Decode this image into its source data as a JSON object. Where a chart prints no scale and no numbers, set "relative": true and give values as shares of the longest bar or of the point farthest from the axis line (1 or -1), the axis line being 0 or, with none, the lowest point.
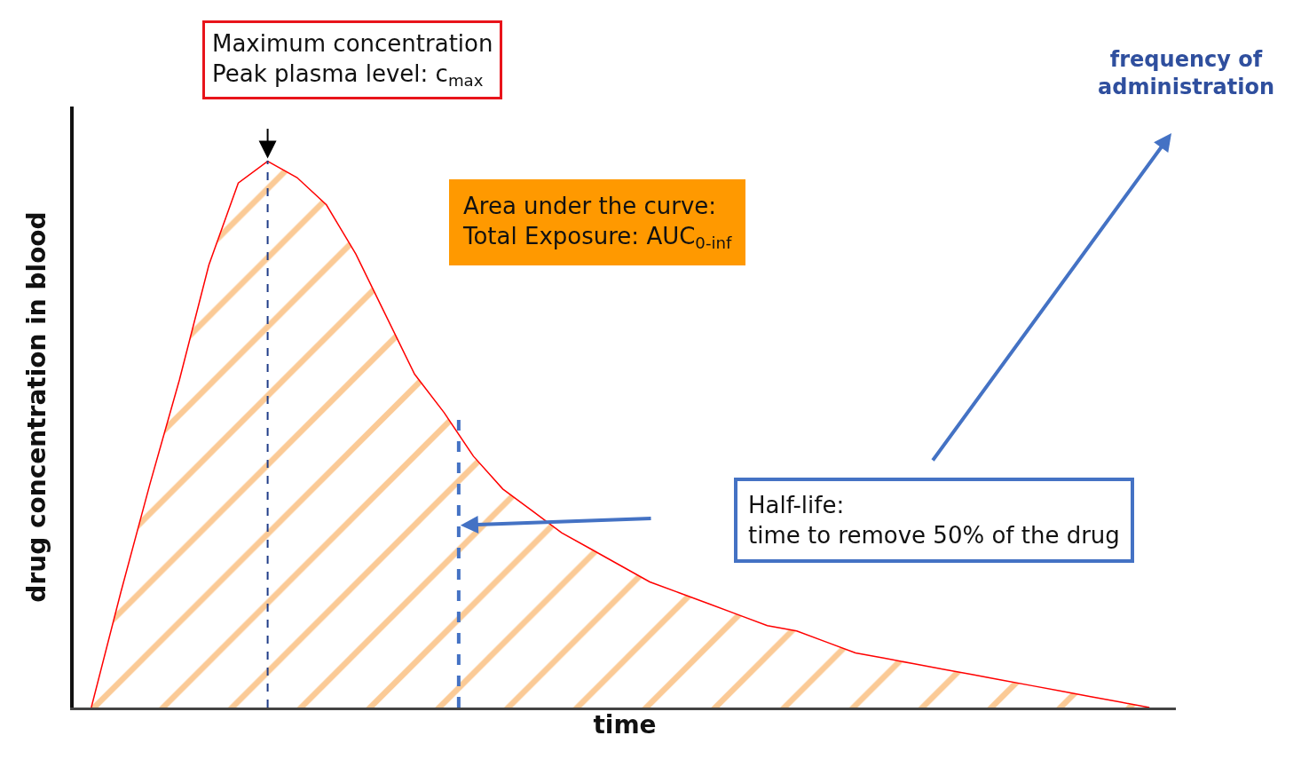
{
  "chart_data": {
    "type": "area",
    "relative": true,
    "xlabel": "time",
    "ylabel": "drug concentration in blood",
    "categories": [
      null,
      null,
      null,
      null,
      null,
      null,
      null,
      null,
      null,
      null,
      null,
      null,
      null,
      null,
      null,
      null,
      null,
      null,
      null,
      null,
      null,
      null,
      null,
      null,
      null,
      null,
      null,
      null,
      null,
      null,
      null,
      null,
      null,
      null,
      null,
      null,
      null
    ],
    "series": [
      {
        "color": "#ff0000",
        "values": [
          0,
          0.21,
          0.41,
          0.6,
          0.81,
          0.96,
          1.0,
          0.97,
          0.92,
          0.83,
          0.72,
          0.61,
          0.54,
          0.46,
          0.4,
          0.36,
          0.32,
          0.29,
          0.26,
          0.23,
          0.21,
          0.19,
          0.17,
          0.15,
          0.14,
          0.12,
          0.1,
          0.09,
          0.08,
          0.07,
          0.06,
          0.05,
          0.04,
          0.03,
          0.02,
          0.01,
          0
        ]
      }
    ],
    "tick_labels": false,
    "annotations": [
      "Maximum concentration\nPeak plasma level: c$_{max}$",
      "Area under the curve:\nTotal Exposure: AUC$_{0-inf}$",
      "Half-life:\ntime to remove 50% of the drug",
      "frequency of\nadministration"
    ]
  }
}
